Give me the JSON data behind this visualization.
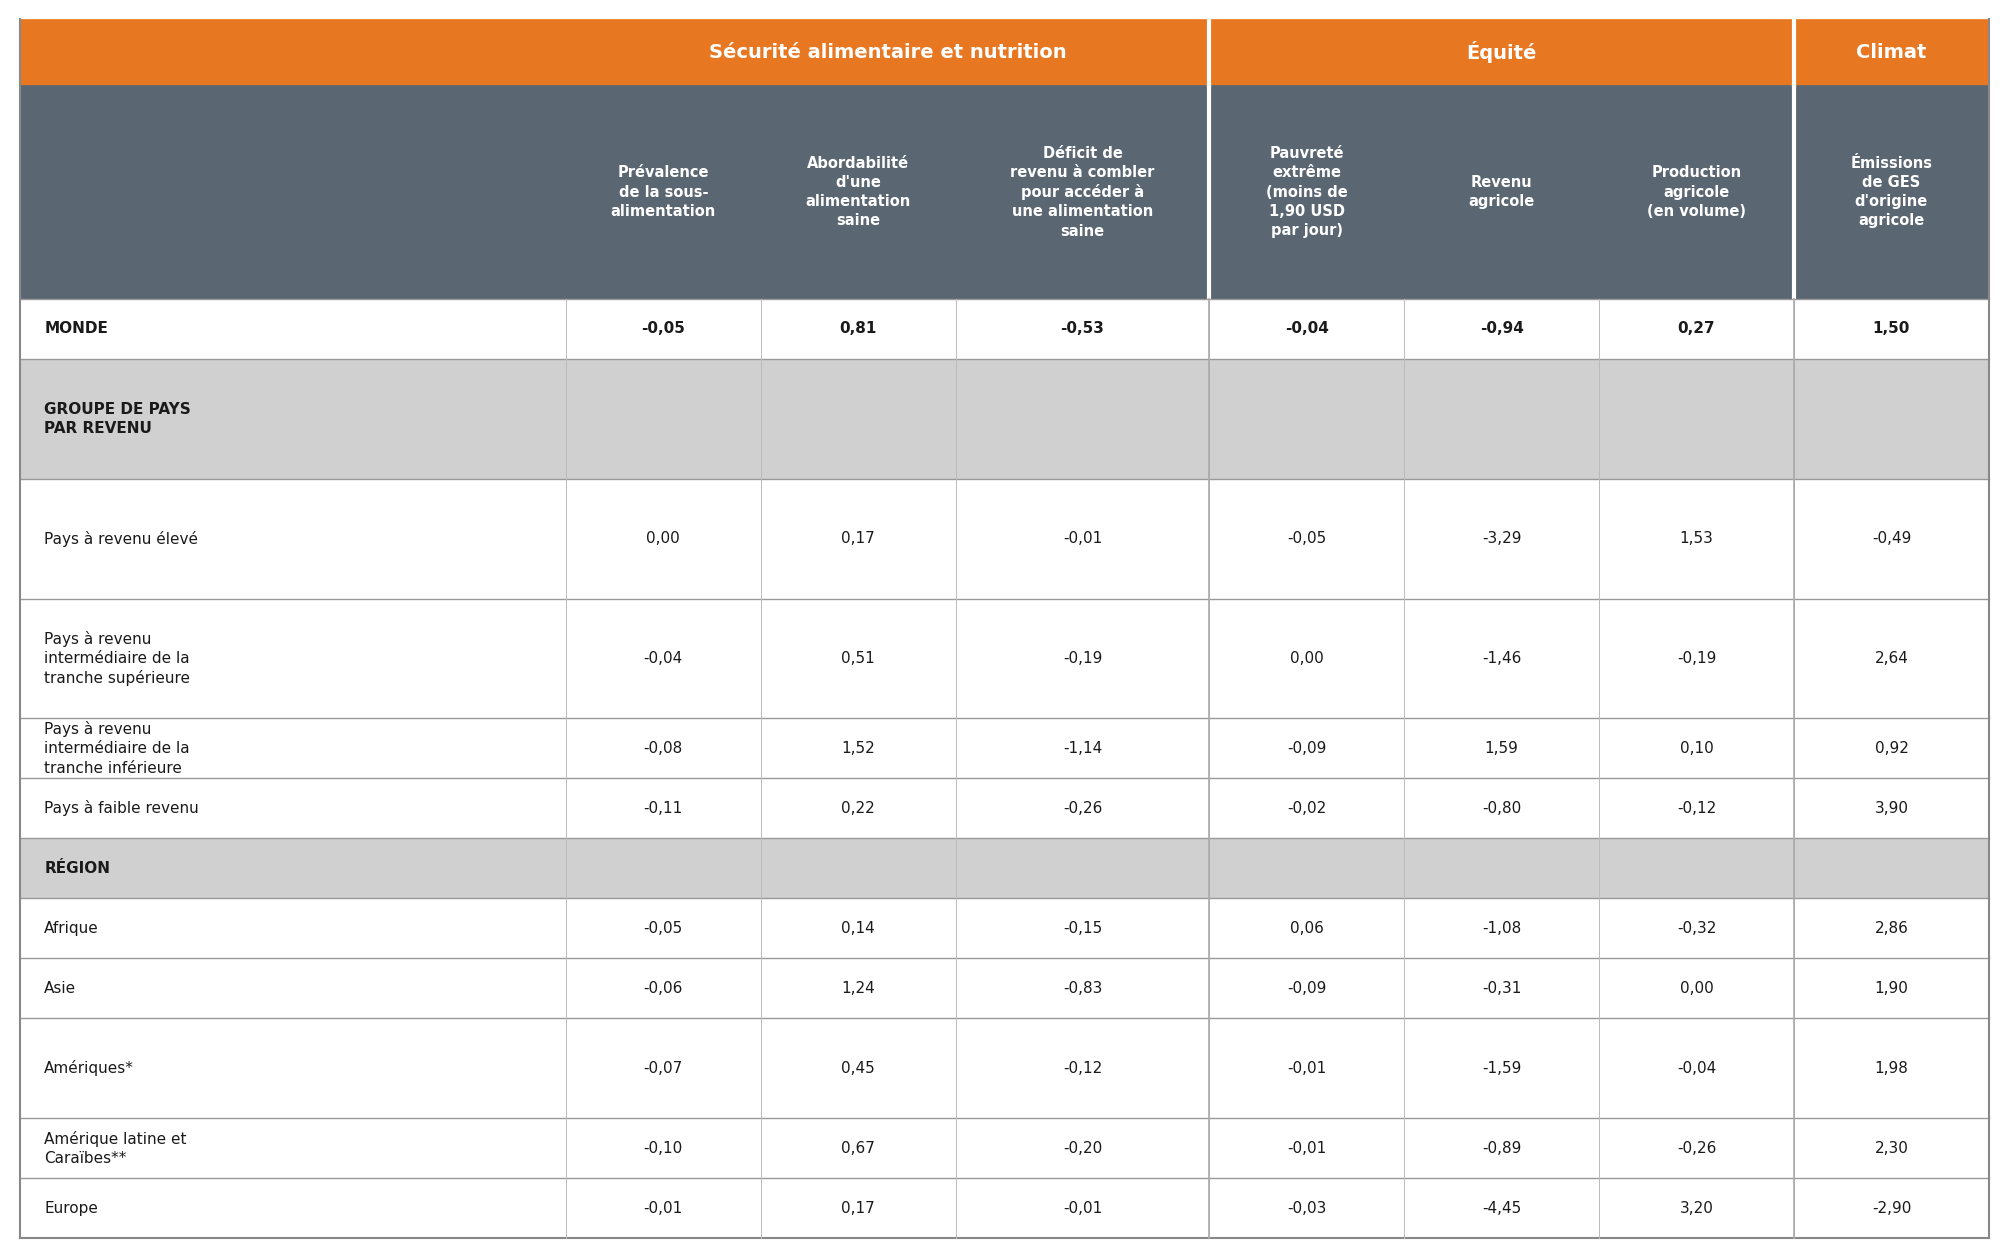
{
  "orange_color": "#E87722",
  "dark_header_color": "#5A6672",
  "group_bg_color": "#D0D0D0",
  "white_color": "#FFFFFF",
  "text_dark": "#1A1A1A",
  "col_header_texts": [
    "Prévalence\nde la sous-\nalimentation",
    "Abordabilité\nd'une\nalimentation\nsaine",
    "Déficit de\nrevenu à combler\npour accéder à\nune alimentation\nsaine",
    "Pauvreté\nextrême\n(moins de\n1,90 USD\npar jour)",
    "Revenu\nagricole",
    "Production\nagricole\n(en volume)",
    "Émissions\nde GES\nd'origine\nagricole"
  ],
  "rows": [
    {
      "label": "MONDE",
      "values": [
        "-0,05",
        "0,81",
        "-0,53",
        "-0,04",
        "-0,94",
        "0,27",
        "1,50"
      ],
      "bold": true,
      "type": "data"
    },
    {
      "label": "GROUPE DE PAYS\nPAR REVENU",
      "values": [
        "",
        "",
        "",
        "",
        "",
        "",
        ""
      ],
      "bold": true,
      "type": "group_header"
    },
    {
      "label": "Pays à revenu élevé",
      "values": [
        "0,00",
        "0,17",
        "-0,01",
        "-0,05",
        "-3,29",
        "1,53",
        "-0,49"
      ],
      "bold": false,
      "type": "data"
    },
    {
      "label": "Pays à revenu\nintermédiaire de la\ntranche supérieure",
      "values": [
        "-0,04",
        "0,51",
        "-0,19",
        "0,00",
        "-1,46",
        "-0,19",
        "2,64"
      ],
      "bold": false,
      "type": "data"
    },
    {
      "label": "Pays à revenu\nintermédiaire de la\ntranche inférieure",
      "values": [
        "-0,08",
        "1,52",
        "-1,14",
        "-0,09",
        "1,59",
        "0,10",
        "0,92"
      ],
      "bold": false,
      "type": "data"
    },
    {
      "label": "Pays à faible revenu",
      "values": [
        "-0,11",
        "0,22",
        "-0,26",
        "-0,02",
        "-0,80",
        "-0,12",
        "3,90"
      ],
      "bold": false,
      "type": "data"
    },
    {
      "label": "RÉGION",
      "values": [
        "",
        "",
        "",
        "",
        "",
        "",
        ""
      ],
      "bold": true,
      "type": "group_header"
    },
    {
      "label": "Afrique",
      "values": [
        "-0,05",
        "0,14",
        "-0,15",
        "0,06",
        "-1,08",
        "-0,32",
        "2,86"
      ],
      "bold": false,
      "type": "data"
    },
    {
      "label": "Asie",
      "values": [
        "-0,06",
        "1,24",
        "-0,83",
        "-0,09",
        "-0,31",
        "0,00",
        "1,90"
      ],
      "bold": false,
      "type": "data"
    },
    {
      "label": "Amériques*",
      "values": [
        "-0,07",
        "0,45",
        "-0,12",
        "-0,01",
        "-1,59",
        "-0,04",
        "1,98"
      ],
      "bold": false,
      "type": "data"
    },
    {
      "label": "Amérique latine et\nCaraïbes**",
      "values": [
        "-0,10",
        "0,67",
        "-0,20",
        "-0,01",
        "-0,89",
        "-0,26",
        "2,30"
      ],
      "bold": false,
      "type": "data"
    },
    {
      "label": "Europe",
      "values": [
        "-0,01",
        "0,17",
        "-0,01",
        "-0,03",
        "-4,45",
        "3,20",
        "-2,90"
      ],
      "bold": false,
      "type": "data"
    }
  ],
  "col_widths_rel": [
    2.8,
    1.0,
    1.0,
    1.3,
    1.0,
    1.0,
    1.0,
    1.0
  ],
  "row_heights_rel": [
    1.0,
    3.2,
    0.9,
    1.8,
    1.8,
    1.8,
    0.9,
    0.9,
    0.9,
    0.9,
    0.9,
    1.5,
    0.9,
    0.9
  ],
  "figsize": [
    20.09,
    12.57
  ],
  "dpi": 100
}
